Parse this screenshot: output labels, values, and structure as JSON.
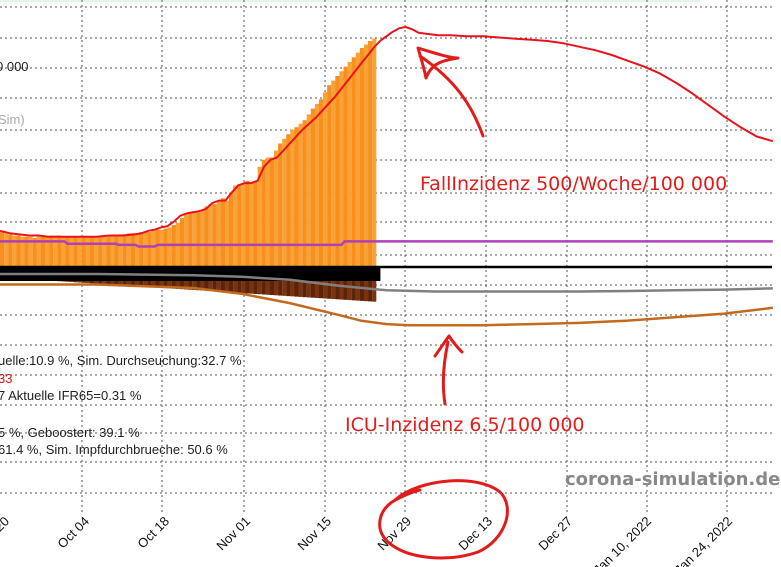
{
  "chart_data": {
    "type": "bar",
    "x_ticks": [
      "20",
      "Oct 04",
      "Oct 18",
      "Nov 01",
      "Nov 15",
      "Nov 29",
      "Dec 13",
      "Dec 27",
      "Jan 10, 2022",
      "Jan 24, 2022"
    ],
    "y_tick_label": "0 000",
    "sim_label": "Sim)",
    "grid": true,
    "series": [
      {
        "kind": "bar",
        "color": "#f7901e",
        "values": [
          1.5,
          1.45,
          1.4,
          1.35,
          1.35,
          1.3,
          1.3,
          1.3,
          1.25,
          1.3,
          1.3,
          1.3,
          1.35,
          1.35,
          1.35,
          1.3,
          1.3,
          1.3,
          1.3,
          1.3,
          1.3,
          1.3,
          1.3,
          1.3,
          1.3,
          1.3,
          1.35,
          1.35,
          1.35,
          1.4,
          1.4,
          1.45,
          1.45,
          1.45,
          1.5,
          1.5,
          1.5,
          1.55,
          1.6,
          1.6,
          1.65,
          1.7,
          1.8,
          1.9,
          2.1,
          2.25,
          2.35,
          2.4,
          2.35,
          2.45,
          2.6,
          2.7,
          2.7,
          2.85,
          2.95,
          2.85,
          3.2,
          3.5,
          3.55,
          3.6,
          3.7,
          3.6,
          3.7,
          4.3,
          4.6,
          4.7,
          4.7,
          5.0,
          5.3,
          5.5,
          5.7,
          5.9,
          6.0,
          6.15,
          6.3,
          6.55,
          6.8,
          7.0,
          7.2,
          7.5,
          7.8,
          8.0,
          8.2,
          8.4,
          8.6,
          8.8,
          9.0,
          9.2,
          9.4,
          9.55,
          9.7,
          9.8
        ]
      },
      {
        "kind": "line",
        "color": "#e8141c",
        "x": [
          0,
          3,
          6,
          9,
          12,
          15,
          18,
          22,
          26,
          30,
          34,
          38,
          42,
          44,
          46,
          48,
          50,
          52,
          54,
          56,
          58,
          60,
          62,
          64,
          66,
          68,
          70,
          72,
          74,
          76,
          78,
          80,
          82,
          84,
          86,
          88,
          90,
          92,
          94,
          96,
          98,
          100,
          102,
          104,
          106,
          108,
          110,
          112,
          114,
          116,
          118,
          120,
          122,
          124,
          126,
          128,
          130,
          133,
          136,
          140,
          145,
          150,
          155,
          160,
          165,
          170,
          175,
          180,
          185,
          190,
          195,
          200,
          205,
          210,
          215,
          220,
          225,
          230,
          235,
          240
        ],
        "values": [
          1.55,
          1.45,
          1.4,
          1.35,
          1.35,
          1.3,
          1.3,
          1.3,
          1.3,
          1.3,
          1.35,
          1.35,
          1.4,
          1.45,
          1.55,
          1.6,
          1.7,
          1.75,
          1.95,
          2.2,
          2.3,
          2.35,
          2.4,
          2.5,
          2.75,
          2.85,
          2.85,
          3.2,
          3.5,
          3.6,
          3.6,
          3.7,
          4.3,
          4.6,
          4.7,
          5.0,
          5.3,
          5.6,
          5.9,
          6.15,
          6.4,
          6.7,
          7.0,
          7.3,
          7.65,
          8.0,
          8.35,
          8.7,
          9.05,
          9.4,
          9.7,
          9.9,
          10.1,
          10.25,
          10.3,
          10.2,
          10.05,
          10.0,
          9.95,
          9.95,
          9.9,
          9.9,
          9.85,
          9.8,
          9.75,
          9.7,
          9.6,
          9.45,
          9.3,
          9.1,
          8.85,
          8.6,
          8.3,
          7.9,
          7.45,
          6.95,
          6.45,
          6.0,
          5.6,
          5.4
        ]
      },
      {
        "kind": "line",
        "color": "#b040b8",
        "x": [
          0,
          20,
          21,
          36,
          37,
          42,
          43,
          48,
          49,
          106,
          107,
          240
        ],
        "values": [
          1.1,
          1.1,
          1.0,
          1.0,
          0.95,
          0.95,
          0.88,
          0.88,
          0.95,
          0.95,
          1.1,
          1.1
        ]
      },
      {
        "kind": "line",
        "color": "#808080",
        "x": [
          0,
          30,
          60,
          75,
          90,
          105,
          120,
          135,
          150,
          165,
          180,
          195,
          210,
          225,
          240
        ],
        "values": [
          -0.3,
          -0.3,
          -0.35,
          -0.42,
          -0.55,
          -0.8,
          -1.0,
          -1.05,
          -1.05,
          -1.05,
          -1.05,
          -1.03,
          -1.0,
          -0.97,
          -0.92
        ]
      },
      {
        "kind": "line",
        "color": "#c46a1f",
        "x": [
          0,
          30,
          60,
          75,
          90,
          105,
          112,
          120,
          127,
          135,
          150,
          165,
          180,
          195,
          210,
          225,
          240
        ],
        "values": [
          -0.75,
          -0.75,
          -0.9,
          -1.15,
          -1.55,
          -2.05,
          -2.3,
          -2.45,
          -2.5,
          -2.5,
          -2.5,
          -2.45,
          -2.4,
          -2.3,
          -2.15,
          -2.0,
          -1.75
        ]
      }
    ],
    "info_lines": [
      {
        "text": "uelle:10.9 %, Sim. Durchseuchung:32.7 %",
        "color": "#222222"
      },
      {
        "text": "33",
        "color": "#d21a1a"
      },
      {
        "text": "7 Aktuelle IFR65=0.31 %",
        "color": "#222222"
      },
      {
        "text": "5 %, Geboostert: 39.1 %",
        "color": "#222222"
      },
      {
        "text": "61.4 %, Sim. Impfdurchbrueche: 50.6 %",
        "color": "#222222"
      }
    ],
    "watermark": "corona-simulation.de",
    "annotations": [
      {
        "text": "FallInzidenz 500/Woche/100 000",
        "color": "#e21b1b"
      },
      {
        "text": "ICU-Inzidenz 6.5/100 000",
        "color": "#e21b1b"
      }
    ]
  }
}
